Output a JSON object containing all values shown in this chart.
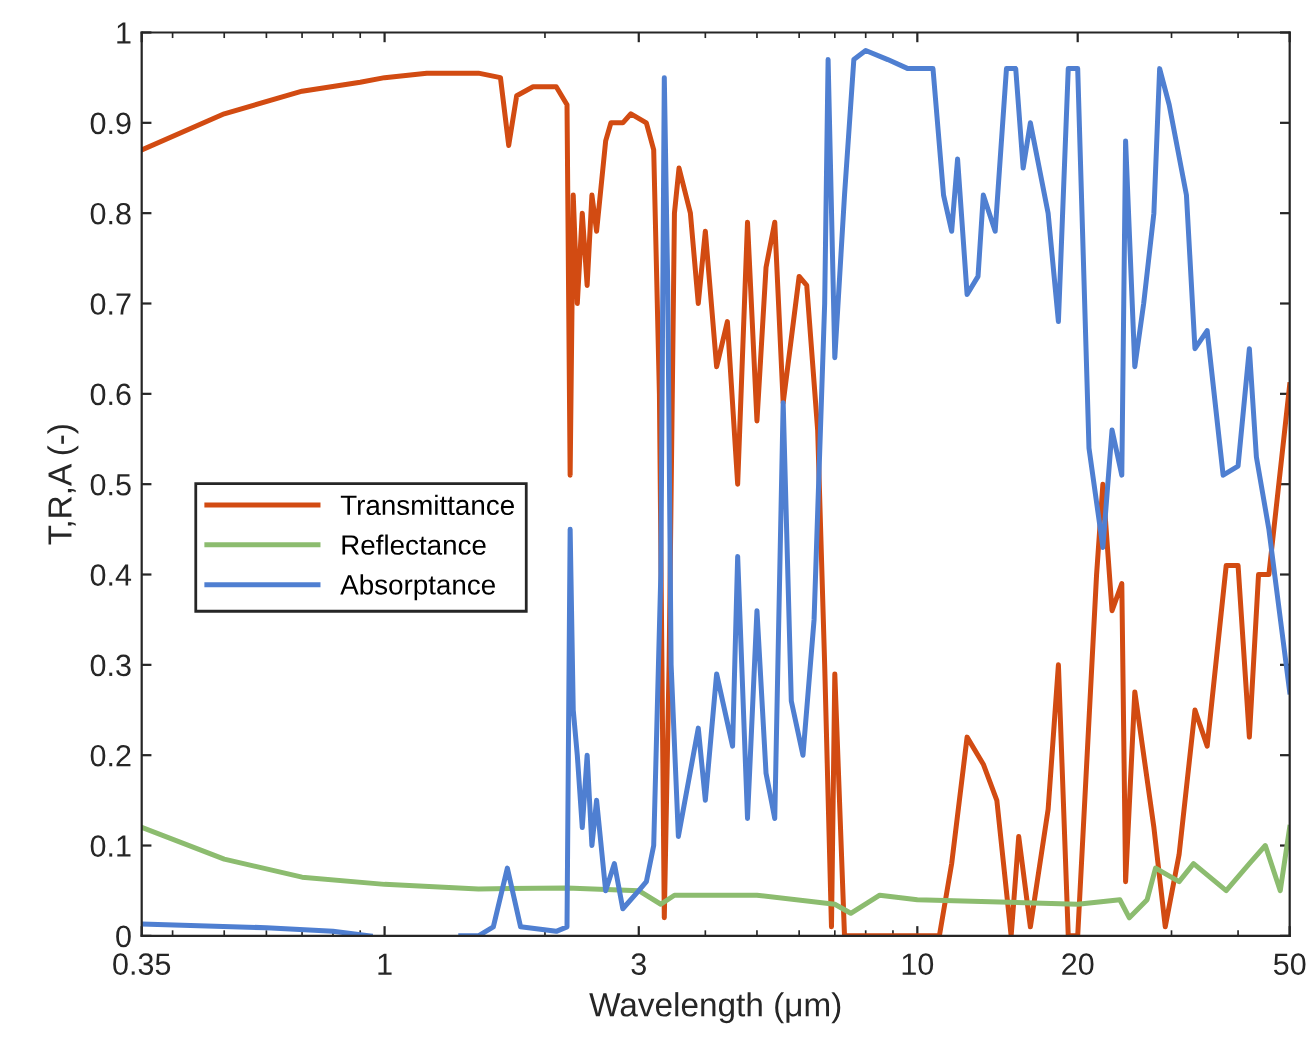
{
  "chart_data": {
    "type": "line",
    "xlabel": "Wavelength (μm)",
    "ylabel": "T,R,A (-)",
    "log": "x",
    "xlim": [
      0.35,
      50
    ],
    "xticks": [
      0.35,
      1,
      3,
      10,
      20,
      50
    ],
    "ylim": [
      0,
      1
    ],
    "yticks": [
      0,
      0.1,
      0.2,
      0.3,
      0.4,
      0.5,
      0.6,
      0.7,
      0.8,
      0.9,
      1
    ],
    "grid": false,
    "legend": "left",
    "marker": "none",
    "line_style": "solid",
    "series": [
      {
        "name": "Transmittance",
        "color": "#d24b12",
        "x": [
          0.35,
          0.5,
          0.7,
          0.9,
          1.0,
          1.2,
          1.5,
          1.65,
          1.71,
          1.77,
          1.9,
          2.1,
          2.2,
          2.23,
          2.26,
          2.3,
          2.35,
          2.4,
          2.45,
          2.5,
          2.6,
          2.66,
          2.8,
          2.9,
          3.1,
          3.2,
          3.28,
          3.35,
          3.42,
          3.5,
          3.57,
          3.75,
          3.88,
          4.0,
          4.2,
          4.4,
          4.6,
          4.8,
          5.0,
          5.2,
          5.4,
          5.6,
          6.0,
          6.2,
          6.5,
          6.7,
          6.9,
          7.0,
          7.3,
          8.0,
          9.0,
          10.0,
          11.0,
          11.6,
          12.4,
          13.3,
          14.1,
          15.0,
          15.5,
          16.3,
          17.6,
          18.4,
          19.2,
          20.0,
          21.7,
          22.3,
          23.2,
          24.2,
          24.6,
          25.6,
          27.8,
          29.2,
          31.0,
          33.2,
          35.0,
          38.0,
          40.0,
          42.0,
          43.7,
          45.7,
          50.0
        ],
        "values": [
          0.87,
          0.91,
          0.935,
          0.945,
          0.95,
          0.955,
          0.955,
          0.95,
          0.875,
          0.93,
          0.94,
          0.94,
          0.92,
          0.51,
          0.82,
          0.7,
          0.8,
          0.72,
          0.82,
          0.78,
          0.88,
          0.9,
          0.9,
          0.91,
          0.9,
          0.87,
          0.6,
          0.02,
          0.3,
          0.8,
          0.85,
          0.8,
          0.7,
          0.78,
          0.63,
          0.68,
          0.5,
          0.79,
          0.57,
          0.74,
          0.79,
          0.59,
          0.73,
          0.72,
          0.56,
          0.3,
          0.01,
          0.29,
          0.0,
          0.0,
          0.0,
          0.0,
          0.0,
          0.08,
          0.22,
          0.19,
          0.15,
          0.0,
          0.11,
          0.01,
          0.14,
          0.3,
          0.0,
          0.0,
          0.4,
          0.5,
          0.36,
          0.39,
          0.06,
          0.27,
          0.12,
          0.01,
          0.09,
          0.25,
          0.21,
          0.41,
          0.41,
          0.22,
          0.4,
          0.4,
          0.61
        ]
      },
      {
        "name": "Reflectance",
        "color": "#8cbc6f",
        "x": [
          0.35,
          0.5,
          0.7,
          1.0,
          1.5,
          2.2,
          3.0,
          3.3,
          3.5,
          5.0,
          7.0,
          7.5,
          8.5,
          10.0,
          20.0,
          24.0,
          25.0,
          27.0,
          28.0,
          31.0,
          33.0,
          38.0,
          42.0,
          45.0,
          48.0,
          50.0
        ],
        "values": [
          0.12,
          0.085,
          0.065,
          0.057,
          0.052,
          0.053,
          0.05,
          0.035,
          0.045,
          0.045,
          0.035,
          0.025,
          0.045,
          0.04,
          0.035,
          0.04,
          0.02,
          0.04,
          0.075,
          0.06,
          0.08,
          0.05,
          0.08,
          0.1,
          0.05,
          0.12
        ]
      },
      {
        "name": "Absorptance",
        "color": "#4f7fd1",
        "x": [
          0.35,
          0.6,
          0.8,
          0.94,
          1.1,
          1.39,
          1.5,
          1.6,
          1.7,
          1.8,
          2.1,
          2.2,
          2.23,
          2.26,
          2.3,
          2.35,
          2.4,
          2.45,
          2.5,
          2.6,
          2.7,
          2.8,
          3.0,
          3.1,
          3.2,
          3.3,
          3.35,
          3.4,
          3.45,
          3.56,
          3.88,
          4.0,
          4.2,
          4.5,
          4.6,
          4.8,
          5.0,
          5.2,
          5.4,
          5.6,
          5.8,
          6.1,
          6.4,
          6.7,
          6.8,
          7.0,
          7.3,
          7.6,
          8.0,
          8.8,
          9.6,
          10.7,
          11.2,
          11.6,
          11.9,
          12.4,
          13.0,
          13.3,
          14.0,
          14.7,
          15.3,
          15.8,
          16.3,
          17.6,
          18.4,
          19.2,
          20.0,
          21.0,
          22.3,
          23.2,
          24.2,
          24.6,
          25.6,
          26.6,
          27.8,
          28.5,
          29.7,
          32.0,
          33.2,
          35.0,
          37.5,
          40.0,
          42.0,
          43.3,
          45.7,
          50.0
        ],
        "values": [
          0.013,
          0.009,
          0.005,
          0.0,
          null,
          0.0,
          0.0,
          0.01,
          0.075,
          0.01,
          0.005,
          0.01,
          0.45,
          0.25,
          0.2,
          0.12,
          0.2,
          0.1,
          0.15,
          0.05,
          0.08,
          0.03,
          0.05,
          0.06,
          0.1,
          0.4,
          0.95,
          0.72,
          0.3,
          0.11,
          0.23,
          0.15,
          0.29,
          0.21,
          0.42,
          0.13,
          0.36,
          0.18,
          0.13,
          0.59,
          0.26,
          0.2,
          0.35,
          0.7,
          0.97,
          0.64,
          0.82,
          0.97,
          0.98,
          0.97,
          0.96,
          0.96,
          0.82,
          0.78,
          0.86,
          0.71,
          0.73,
          0.82,
          0.78,
          0.96,
          0.96,
          0.85,
          0.9,
          0.8,
          0.68,
          0.96,
          0.96,
          0.54,
          0.43,
          0.56,
          0.51,
          0.88,
          0.63,
          0.7,
          0.8,
          0.96,
          0.92,
          0.82,
          0.65,
          0.67,
          0.51,
          0.52,
          0.65,
          0.53,
          0.45,
          0.27
        ]
      }
    ]
  }
}
